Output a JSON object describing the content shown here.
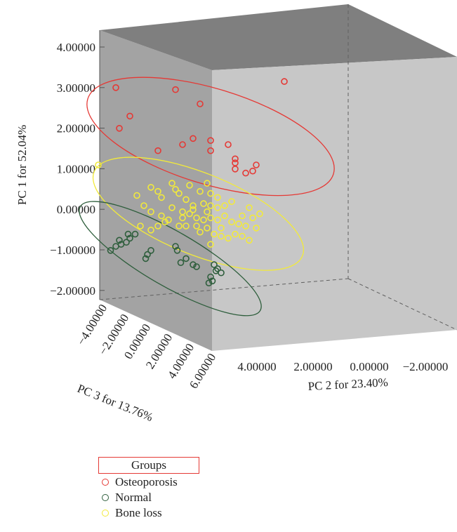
{
  "chart_data": {
    "type": "scatter",
    "projection": "3d",
    "yaxis": {
      "label": "PC 1 for 52.04%",
      "ticks": [
        "4.00000",
        "3.00000",
        "2.00000",
        "1.00000",
        "0.00000",
        "−1.00000",
        "−2.00000"
      ]
    },
    "xaxis": {
      "label": "PC 2 for 23.40%",
      "ticks": [
        "4.00000",
        "2.00000",
        "0.00000",
        "−2.00000"
      ]
    },
    "zaxis": {
      "label": "PC 3 for 13.76%",
      "ticks": [
        "−4.00000",
        "−2.00000",
        "0.00000",
        "2.00000",
        "4.00000",
        "6.00000"
      ]
    },
    "legend": {
      "title": "Groups",
      "placement": "bottom-left"
    },
    "series": [
      {
        "name": "Osteoporosis",
        "color": "#e53935",
        "points": [
          [
            4.6,
            2.9
          ],
          [
            2.9,
            2.85
          ],
          [
            2.2,
            2.5
          ],
          [
            4.2,
            2.2
          ],
          [
            4.5,
            1.9
          ],
          [
            -0.2,
            3.05
          ],
          [
            2.4,
            1.65
          ],
          [
            1.9,
            1.6
          ],
          [
            2.7,
            1.5
          ],
          [
            1.4,
            1.5
          ],
          [
            3.4,
            1.35
          ],
          [
            1.9,
            1.35
          ],
          [
            1.2,
            1.15
          ],
          [
            1.2,
            1.05
          ],
          [
            0.6,
            1.0
          ],
          [
            0.7,
            0.85
          ],
          [
            0.9,
            0.8
          ],
          [
            1.2,
            0.9
          ]
        ]
      },
      {
        "name": "Normal",
        "color": "#2e5e3c",
        "points": [
          [
            4.75,
            -1.1
          ],
          [
            4.6,
            -1.0
          ],
          [
            4.45,
            -0.95
          ],
          [
            4.3,
            -0.9
          ],
          [
            4.5,
            -0.85
          ],
          [
            4.2,
            -0.8
          ],
          [
            4.25,
            -0.7
          ],
          [
            4.05,
            -0.7
          ],
          [
            3.75,
            -1.3
          ],
          [
            3.7,
            -1.2
          ],
          [
            3.6,
            -1.1
          ],
          [
            2.9,
            -1.0
          ],
          [
            2.85,
            -1.1
          ],
          [
            2.75,
            -1.4
          ],
          [
            2.6,
            -1.3
          ],
          [
            2.4,
            -1.45
          ],
          [
            2.3,
            -1.5
          ],
          [
            1.8,
            -1.45
          ],
          [
            1.75,
            -1.6
          ],
          [
            1.7,
            -1.55
          ],
          [
            1.9,
            -1.75
          ],
          [
            1.85,
            -1.85
          ],
          [
            1.95,
            -1.9
          ],
          [
            1.6,
            -1.65
          ]
        ]
      },
      {
        "name": "Bone loss",
        "color": "#f2ea3a",
        "points": [
          [
            5.1,
            1.0
          ],
          [
            3.4,
            0.35
          ],
          [
            3.3,
            0.2
          ],
          [
            2.9,
            0.4
          ],
          [
            2.8,
            0.3
          ],
          [
            2.6,
            0.15
          ],
          [
            2.2,
            0.35
          ],
          [
            1.9,
            0.3
          ],
          [
            1.7,
            0.2
          ],
          [
            2.4,
            0.0
          ],
          [
            2.1,
            0.05
          ],
          [
            1.9,
            0.0
          ],
          [
            1.7,
            -0.05
          ],
          [
            1.5,
            0.0
          ],
          [
            3.8,
            0.0
          ],
          [
            3.6,
            -0.15
          ],
          [
            3.3,
            -0.25
          ],
          [
            3.1,
            -0.35
          ],
          [
            3.0,
            -0.05
          ],
          [
            2.7,
            -0.15
          ],
          [
            2.5,
            -0.2
          ],
          [
            2.3,
            -0.3
          ],
          [
            2.1,
            -0.35
          ],
          [
            1.9,
            -0.3
          ],
          [
            1.7,
            -0.35
          ],
          [
            1.5,
            -0.25
          ],
          [
            1.3,
            -0.4
          ],
          [
            1.1,
            -0.45
          ],
          [
            0.9,
            -0.5
          ],
          [
            0.7,
            -0.3
          ],
          [
            0.5,
            -0.2
          ],
          [
            3.9,
            -0.5
          ],
          [
            3.6,
            -0.6
          ],
          [
            3.2,
            -0.4
          ],
          [
            2.8,
            -0.5
          ],
          [
            2.6,
            -0.5
          ],
          [
            2.3,
            -0.5
          ],
          [
            2.2,
            -0.65
          ],
          [
            2.0,
            -0.55
          ],
          [
            1.8,
            -0.7
          ],
          [
            1.6,
            -0.75
          ],
          [
            1.4,
            -0.8
          ],
          [
            1.2,
            -0.7
          ],
          [
            1.0,
            -0.75
          ],
          [
            0.8,
            -0.85
          ],
          [
            2.5,
            0.5
          ],
          [
            2.0,
            0.55
          ],
          [
            3.0,
            0.55
          ],
          [
            3.6,
            0.45
          ],
          [
            4.0,
            0.25
          ],
          [
            1.3,
            0.1
          ],
          [
            0.8,
            -0.05
          ],
          [
            2.4,
            -0.1
          ],
          [
            2.0,
            -0.15
          ],
          [
            1.6,
            -0.55
          ],
          [
            2.7,
            -0.3
          ],
          [
            3.4,
            -0.5
          ],
          [
            1.0,
            -0.25
          ],
          [
            0.6,
            -0.55
          ],
          [
            1.9,
            -0.95
          ]
        ]
      }
    ],
    "ellipses": [
      {
        "series": "Osteoporosis",
        "center": [
          1.9,
          1.7
        ],
        "color": "#e53935"
      },
      {
        "series": "Bone loss",
        "center": [
          2.25,
          -0.2
        ],
        "color": "#f2ea3a"
      },
      {
        "series": "Normal",
        "center": [
          3.05,
          -1.3
        ],
        "color": "#2e5e3c"
      }
    ]
  }
}
